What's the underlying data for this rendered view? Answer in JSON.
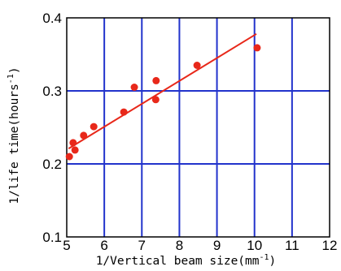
{
  "chart_data": {
    "type": "scatter",
    "title": "",
    "xlabel": "1/Vertical beam size(mm",
    "xlabel_sup": "-1",
    "xlabel_tail": ")",
    "ylabel": "1/life time(hours",
    "ylabel_sup": "-1",
    "ylabel_tail": ")",
    "xlim": [
      5,
      12
    ],
    "ylim": [
      0.1,
      0.4
    ],
    "xticks": [
      5,
      6,
      7,
      8,
      9,
      10,
      11,
      12
    ],
    "yticks": [
      0.1,
      0.2,
      0.3,
      0.4
    ],
    "xtick_labels": [
      "5",
      "6",
      "7",
      "8",
      "9",
      "10",
      "11",
      "12"
    ],
    "ytick_labels": [
      "0.1",
      "0.2",
      "0.3",
      "0.4"
    ],
    "grid": true,
    "series": [
      {
        "kind": "points",
        "color": "#e8281a",
        "points": [
          {
            "x": 5.07,
            "y": 0.21
          },
          {
            "x": 5.17,
            "y": 0.229
          },
          {
            "x": 5.22,
            "y": 0.219
          },
          {
            "x": 5.45,
            "y": 0.239
          },
          {
            "x": 5.72,
            "y": 0.251
          },
          {
            "x": 6.52,
            "y": 0.271
          },
          {
            "x": 6.8,
            "y": 0.305
          },
          {
            "x": 7.37,
            "y": 0.288
          },
          {
            "x": 7.38,
            "y": 0.314
          },
          {
            "x": 8.47,
            "y": 0.335
          },
          {
            "x": 10.07,
            "y": 0.359
          }
        ]
      },
      {
        "kind": "fit-line",
        "color": "#e8281a",
        "x": [
          5.05,
          10.05
        ],
        "y": [
          0.221,
          0.378
        ]
      }
    ],
    "colors": {
      "grid": "#2233cc",
      "axis": "#000000",
      "data": "#e8281a"
    }
  }
}
